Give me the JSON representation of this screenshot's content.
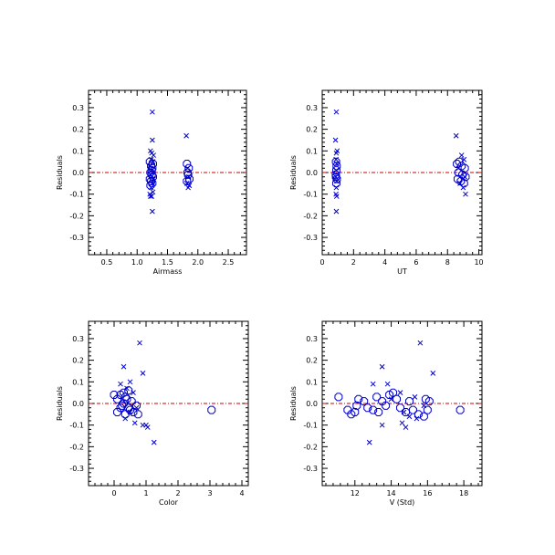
{
  "colors": {
    "marker": "#0000cc",
    "zero_line": "#cc0000",
    "axis": "#000000"
  },
  "chart_data": [
    {
      "type": "scatter",
      "xlabel": "Airmass",
      "ylabel": "Residuals",
      "xlim": [
        0.2,
        2.8
      ],
      "ylim": [
        -0.38,
        0.38
      ],
      "xticks": [
        0.5,
        1.0,
        1.5,
        2.0,
        2.5
      ],
      "xtick_labels": [
        "0.5",
        "1.0",
        "1.5",
        "2.0",
        "2.5"
      ],
      "yticks": [
        -0.3,
        -0.2,
        -0.1,
        0.0,
        0.1,
        0.2,
        0.3
      ],
      "ytick_labels": [
        "-0.3",
        "-0.2",
        "-0.1",
        "0.0",
        "0.1",
        "0.2",
        "0.3"
      ],
      "zero_line": 0.0,
      "series": [
        {
          "marker": "x",
          "points": [
            [
              1.25,
              0.28
            ],
            [
              1.25,
              0.15
            ],
            [
              1.22,
              0.1
            ],
            [
              1.24,
              0.09
            ],
            [
              1.27,
              0.08
            ],
            [
              1.23,
              0.06
            ],
            [
              1.26,
              0.05
            ],
            [
              1.21,
              0.03
            ],
            [
              1.24,
              0.01
            ],
            [
              1.22,
              -0.01
            ],
            [
              1.27,
              -0.03
            ],
            [
              1.25,
              -0.05
            ],
            [
              1.23,
              -0.07
            ],
            [
              1.26,
              -0.09
            ],
            [
              1.21,
              -0.1
            ],
            [
              1.24,
              -0.11
            ],
            [
              1.22,
              -0.11
            ],
            [
              1.25,
              -0.18
            ],
            [
              1.81,
              0.17
            ],
            [
              1.83,
              0.02
            ],
            [
              1.85,
              -0.02
            ],
            [
              1.82,
              -0.05
            ],
            [
              1.86,
              -0.06
            ],
            [
              1.84,
              -0.07
            ]
          ]
        },
        {
          "marker": "o",
          "points": [
            [
              1.21,
              0.05
            ],
            [
              1.23,
              0.03
            ],
            [
              1.25,
              0.02
            ],
            [
              1.22,
              0.0
            ],
            [
              1.24,
              -0.01
            ],
            [
              1.26,
              -0.02
            ],
            [
              1.21,
              -0.03
            ],
            [
              1.23,
              -0.04
            ],
            [
              1.25,
              -0.05
            ],
            [
              1.22,
              -0.06
            ],
            [
              1.24,
              0.01
            ],
            [
              1.26,
              0.04
            ],
            [
              1.82,
              0.04
            ],
            [
              1.85,
              0.02
            ],
            [
              1.83,
              0.0
            ],
            [
              1.84,
              -0.01
            ],
            [
              1.86,
              -0.03
            ],
            [
              1.82,
              -0.04
            ]
          ]
        }
      ]
    },
    {
      "type": "scatter",
      "xlabel": "UT",
      "ylabel": "Residuals",
      "xlim": [
        0,
        10.2
      ],
      "ylim": [
        -0.38,
        0.38
      ],
      "xticks": [
        0,
        2,
        4,
        6,
        8,
        10
      ],
      "xtick_labels": [
        "0",
        "2",
        "4",
        "6",
        "8",
        "10"
      ],
      "yticks": [
        -0.3,
        -0.2,
        -0.1,
        0.0,
        0.1,
        0.2,
        0.3
      ],
      "ytick_labels": [
        "-0.3",
        "-0.2",
        "-0.1",
        "0.0",
        "0.1",
        "0.2",
        "0.3"
      ],
      "zero_line": 0.0,
      "series": [
        {
          "marker": "x",
          "points": [
            [
              0.9,
              0.28
            ],
            [
              0.85,
              0.15
            ],
            [
              0.95,
              0.1
            ],
            [
              0.9,
              0.09
            ],
            [
              0.88,
              0.06
            ],
            [
              0.92,
              0.04
            ],
            [
              0.9,
              0.01
            ],
            [
              0.87,
              -0.02
            ],
            [
              0.93,
              -0.04
            ],
            [
              0.9,
              -0.07
            ],
            [
              0.88,
              -0.1
            ],
            [
              0.92,
              -0.11
            ],
            [
              0.9,
              -0.18
            ],
            [
              8.55,
              0.17
            ],
            [
              8.9,
              0.08
            ],
            [
              9.05,
              0.06
            ],
            [
              8.7,
              0.02
            ],
            [
              9.1,
              -0.02
            ],
            [
              8.8,
              -0.05
            ],
            [
              9.0,
              -0.07
            ],
            [
              9.15,
              -0.1
            ]
          ]
        },
        {
          "marker": "o",
          "points": [
            [
              0.88,
              0.05
            ],
            [
              0.92,
              0.03
            ],
            [
              0.9,
              0.01
            ],
            [
              0.87,
              -0.01
            ],
            [
              0.93,
              -0.03
            ],
            [
              0.9,
              -0.05
            ],
            [
              0.88,
              -0.02
            ],
            [
              8.6,
              0.04
            ],
            [
              8.9,
              0.03
            ],
            [
              9.1,
              0.02
            ],
            [
              8.7,
              0.0
            ],
            [
              8.95,
              -0.01
            ],
            [
              9.15,
              -0.02
            ],
            [
              8.65,
              -0.03
            ],
            [
              8.85,
              -0.04
            ],
            [
              9.05,
              -0.05
            ],
            [
              8.75,
              0.05
            ]
          ]
        }
      ]
    },
    {
      "type": "scatter",
      "xlabel": "Color",
      "ylabel": "Residuals",
      "xlim": [
        -0.8,
        4.2
      ],
      "ylim": [
        -0.38,
        0.38
      ],
      "xticks": [
        0,
        1,
        2,
        3,
        4
      ],
      "xtick_labels": [
        "0",
        "1",
        "2",
        "3",
        "4"
      ],
      "yticks": [
        -0.3,
        -0.2,
        -0.1,
        0.0,
        0.1,
        0.2,
        0.3
      ],
      "ytick_labels": [
        "-0.3",
        "-0.2",
        "-0.1",
        "0.0",
        "0.1",
        "0.2",
        "0.3"
      ],
      "zero_line": 0.0,
      "series": [
        {
          "marker": "x",
          "points": [
            [
              0.8,
              0.28
            ],
            [
              0.3,
              0.17
            ],
            [
              0.9,
              0.14
            ],
            [
              0.5,
              0.1
            ],
            [
              0.2,
              0.09
            ],
            [
              0.4,
              0.07
            ],
            [
              0.6,
              0.05
            ],
            [
              0.7,
              -0.02
            ],
            [
              0.5,
              -0.04
            ],
            [
              0.35,
              -0.07
            ],
            [
              0.65,
              -0.09
            ],
            [
              0.9,
              -0.1
            ],
            [
              1.05,
              -0.11
            ],
            [
              1.0,
              -0.1
            ],
            [
              1.25,
              -0.18
            ]
          ]
        },
        {
          "marker": "o",
          "points": [
            [
              0.0,
              0.04
            ],
            [
              0.1,
              0.02
            ],
            [
              0.2,
              0.04
            ],
            [
              0.3,
              0.05
            ],
            [
              0.35,
              0.03
            ],
            [
              0.4,
              0.02
            ],
            [
              0.3,
              0.0
            ],
            [
              0.25,
              -0.01
            ],
            [
              0.45,
              -0.02
            ],
            [
              0.5,
              -0.03
            ],
            [
              0.55,
              0.01
            ],
            [
              0.6,
              -0.04
            ],
            [
              0.1,
              -0.04
            ],
            [
              0.35,
              -0.05
            ],
            [
              0.45,
              0.06
            ],
            [
              0.7,
              -0.01
            ],
            [
              0.75,
              -0.05
            ],
            [
              0.2,
              -0.02
            ],
            [
              3.05,
              -0.03
            ]
          ]
        }
      ]
    },
    {
      "type": "scatter",
      "xlabel": "V (Std)",
      "ylabel": "Residuals",
      "xlim": [
        10.2,
        19.0
      ],
      "ylim": [
        -0.38,
        0.38
      ],
      "xticks": [
        12,
        14,
        16,
        18
      ],
      "xtick_labels": [
        "12",
        "14",
        "16",
        "18"
      ],
      "yticks": [
        -0.3,
        -0.2,
        -0.1,
        0.0,
        0.1,
        0.2,
        0.3
      ],
      "ytick_labels": [
        "-0.3",
        "-0.2",
        "-0.1",
        "0.0",
        "0.1",
        "0.2",
        "0.3"
      ],
      "zero_line": 0.0,
      "series": [
        {
          "marker": "x",
          "points": [
            [
              15.6,
              0.28
            ],
            [
              13.5,
              0.17
            ],
            [
              16.3,
              0.14
            ],
            [
              13.8,
              0.09
            ],
            [
              13.0,
              0.09
            ],
            [
              14.5,
              0.05
            ],
            [
              15.3,
              0.03
            ],
            [
              14.0,
              0.02
            ],
            [
              15.8,
              -0.01
            ],
            [
              14.7,
              -0.04
            ],
            [
              15.0,
              -0.06
            ],
            [
              15.4,
              -0.07
            ],
            [
              14.6,
              -0.09
            ],
            [
              14.8,
              -0.11
            ],
            [
              13.5,
              -0.1
            ],
            [
              12.8,
              -0.18
            ]
          ]
        },
        {
          "marker": "o",
          "points": [
            [
              11.1,
              0.03
            ],
            [
              11.6,
              -0.03
            ],
            [
              11.8,
              -0.05
            ],
            [
              12.0,
              -0.04
            ],
            [
              12.2,
              0.02
            ],
            [
              12.5,
              0.01
            ],
            [
              12.7,
              -0.02
            ],
            [
              13.0,
              -0.03
            ],
            [
              13.2,
              0.03
            ],
            [
              13.5,
              0.01
            ],
            [
              13.7,
              -0.01
            ],
            [
              13.9,
              0.04
            ],
            [
              14.1,
              0.05
            ],
            [
              14.3,
              0.02
            ],
            [
              14.5,
              -0.02
            ],
            [
              14.8,
              -0.04
            ],
            [
              15.0,
              0.01
            ],
            [
              15.2,
              -0.03
            ],
            [
              15.5,
              -0.05
            ],
            [
              15.8,
              -0.06
            ],
            [
              16.0,
              -0.03
            ],
            [
              16.1,
              0.01
            ],
            [
              12.1,
              -0.01
            ],
            [
              13.3,
              -0.04
            ],
            [
              15.9,
              0.02
            ],
            [
              17.8,
              -0.03
            ]
          ]
        }
      ]
    }
  ]
}
